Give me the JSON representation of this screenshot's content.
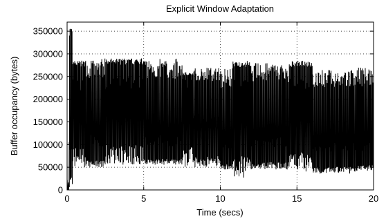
{
  "chart_data": {
    "type": "line",
    "title": "Explicit Window Adaptation",
    "xlabel": "Time (secs)",
    "ylabel": "Buffer occupancy (bytes)",
    "xlim": [
      0,
      20
    ],
    "ylim": [
      0,
      370000
    ],
    "x_ticks": [
      0,
      5,
      10,
      15,
      20
    ],
    "y_ticks": [
      0,
      50000,
      100000,
      150000,
      200000,
      250000,
      300000,
      350000
    ],
    "x_tick_labels": [
      "0",
      "5",
      "10",
      "15",
      "20"
    ],
    "y_tick_labels": [
      "0",
      "50000",
      "100000",
      "150000",
      "200000",
      "250000",
      "300000",
      "350000"
    ],
    "grid": true,
    "grid_style": "dotted",
    "line_color": "#000000",
    "series": [
      {
        "segments": [
          {
            "x0": 0.0,
            "x1": 0.35,
            "low": 5000,
            "high": 360000,
            "center": 100000
          },
          {
            "x0": 0.35,
            "x1": 1.2,
            "low": 50000,
            "high": 285000,
            "center": 230000
          },
          {
            "x0": 1.2,
            "x1": 2.5,
            "low": 50000,
            "high": 290000,
            "center": 110000
          },
          {
            "x0": 2.5,
            "x1": 5.0,
            "low": 55000,
            "high": 290000,
            "center": 235000
          },
          {
            "x0": 5.0,
            "x1": 7.5,
            "low": 55000,
            "high": 290000,
            "center": 110000
          },
          {
            "x0": 7.5,
            "x1": 8.2,
            "low": 50000,
            "high": 260000,
            "center": 230000
          },
          {
            "x0": 8.2,
            "x1": 10.0,
            "low": 50000,
            "high": 270000,
            "center": 150000
          },
          {
            "x0": 10.0,
            "x1": 10.8,
            "low": 45000,
            "high": 270000,
            "center": 90000
          },
          {
            "x0": 10.8,
            "x1": 12.0,
            "low": 25000,
            "high": 285000,
            "center": 230000
          },
          {
            "x0": 12.0,
            "x1": 14.5,
            "low": 45000,
            "high": 280000,
            "center": 110000
          },
          {
            "x0": 14.5,
            "x1": 16.0,
            "low": 40000,
            "high": 285000,
            "center": 230000
          },
          {
            "x0": 16.0,
            "x1": 18.5,
            "low": 35000,
            "high": 265000,
            "center": 100000
          },
          {
            "x0": 18.5,
            "x1": 20.0,
            "low": 40000,
            "high": 270000,
            "center": 100000
          }
        ]
      }
    ]
  }
}
